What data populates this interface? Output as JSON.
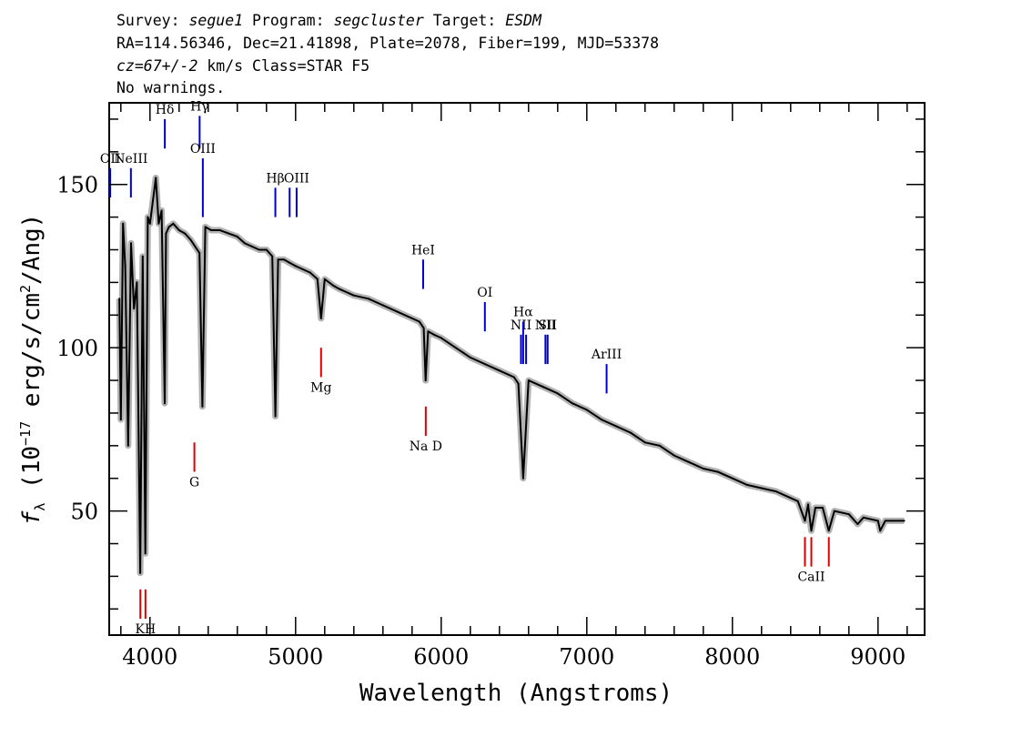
{
  "header": {
    "line1": {
      "survey_label": "Survey: ",
      "survey": "segue1",
      "program_label": " Program: ",
      "program": "segcluster",
      "target_label": " Target: ",
      "target": "ESDM"
    },
    "line2": "RA=114.56346, Dec=21.41898, Plate=2078, Fiber=199, MJD=53378",
    "line3": {
      "cz": "cz=67+/-2",
      "rest": " km/s Class=STAR F5"
    },
    "line4": "No warnings."
  },
  "colors": {
    "emission": "#0000cc",
    "absorption": "#dd0000",
    "spectrum": "#000000",
    "error_band": "#b3b3b3",
    "label_line": "#000000"
  },
  "chart_data": {
    "type": "line",
    "title": "",
    "xlabel": "Wavelength (Angstroms)",
    "ylabel_parts": [
      "f",
      "λ",
      " (10",
      "−17",
      " erg/s/cm",
      "2",
      "/Ang)"
    ],
    "xlim": [
      3720,
      9320
    ],
    "ylim": [
      12,
      175
    ],
    "xticks": [
      4000,
      5000,
      6000,
      7000,
      8000,
      9000
    ],
    "yticks": [
      50,
      100,
      150
    ],
    "grid": false,
    "series": [
      {
        "x": [
          3790,
          3800,
          3815,
          3830,
          3850,
          3870,
          3890,
          3910,
          3933,
          3950,
          3968,
          3985,
          4000,
          4020,
          4040,
          4060,
          4080,
          4101,
          4110,
          4130,
          4160,
          4200,
          4240,
          4280,
          4310,
          4340,
          4360,
          4380,
          4420,
          4480,
          4540,
          4600,
          4650,
          4700,
          4750,
          4800,
          4840,
          4861,
          4880,
          4920,
          4960,
          5000,
          5050,
          5100,
          5150,
          5175,
          5200,
          5260,
          5300,
          5400,
          5500,
          5600,
          5700,
          5800,
          5850,
          5880,
          5893,
          5910,
          5950,
          6000,
          6100,
          6200,
          6300,
          6400,
          6500,
          6530,
          6563,
          6600,
          6700,
          6800,
          6900,
          7000,
          7100,
          7200,
          7300,
          7400,
          7500,
          7600,
          7700,
          7800,
          7900,
          8000,
          8100,
          8200,
          8300,
          8400,
          8450,
          8498,
          8520,
          8542,
          8570,
          8620,
          8662,
          8700,
          8800,
          8860,
          8900,
          9000,
          9015,
          9050,
          9100,
          9180
        ],
        "y": [
          115,
          78,
          138,
          125,
          70,
          132,
          112,
          120,
          31,
          128,
          37,
          140,
          138,
          145,
          152,
          138,
          142,
          83,
          135,
          137,
          138,
          136,
          135,
          133,
          131,
          129,
          82,
          137,
          136,
          136,
          135,
          134,
          132,
          131,
          130,
          130,
          128,
          79,
          127,
          127,
          126,
          125,
          124,
          123,
          121,
          109,
          121,
          119,
          118,
          116,
          115,
          113,
          111,
          109,
          108,
          106,
          90,
          105,
          104,
          103,
          100,
          97,
          95,
          93,
          91,
          89,
          60,
          90,
          88,
          86,
          83,
          81,
          78,
          76,
          74,
          71,
          70,
          67,
          65,
          63,
          62,
          60,
          58,
          57,
          56,
          54,
          53,
          47,
          52,
          44,
          51,
          51,
          44,
          50,
          49,
          46,
          48,
          47,
          44,
          47,
          47,
          47
        ]
      }
    ],
    "emission_lines": [
      {
        "wave": 3727,
        "label": "OII",
        "y1": 146,
        "y2": 155
      },
      {
        "wave": 3869,
        "label": "NeIII",
        "y1": 146,
        "y2": 155
      },
      {
        "wave": 4102,
        "label": "Hδ",
        "y1": 161,
        "y2": 170
      },
      {
        "wave": 4341,
        "label": "Hγ",
        "y1": 161,
        "y2": 171
      },
      {
        "wave": 4363,
        "label": "OIII",
        "y1": 140,
        "y2": 158
      },
      {
        "wave": 4861,
        "label": "Hβ",
        "y1": 140,
        "y2": 149
      },
      {
        "wave": 4959,
        "label": "",
        "y1": 140,
        "y2": 149
      },
      {
        "wave": 5007,
        "label": "OIII",
        "y1": 140,
        "y2": 149
      },
      {
        "wave": 5876,
        "label": "HeI",
        "y1": 118,
        "y2": 127
      },
      {
        "wave": 6300,
        "label": "OI",
        "y1": 105,
        "y2": 114
      },
      {
        "wave": 6548,
        "label": "NII",
        "y1": 95,
        "y2": 104
      },
      {
        "wave": 6563,
        "label": "Hα",
        "y1": 95,
        "y2": 108
      },
      {
        "wave": 6583,
        "label": "",
        "y1": 95,
        "y2": 104
      },
      {
        "wave": 6716,
        "label": "NII",
        "y1": 95,
        "y2": 104
      },
      {
        "wave": 6731,
        "label": "SII",
        "y1": 95,
        "y2": 104
      },
      {
        "wave": 7136,
        "label": "ArIII",
        "y1": 86,
        "y2": 95
      }
    ],
    "absorption_lines": [
      {
        "wave": 3934,
        "label": "",
        "y1": 17,
        "y2": 26
      },
      {
        "wave": 3969,
        "label": "KH",
        "y1": 17,
        "y2": 26
      },
      {
        "wave": 4305,
        "label": "G",
        "y1": 62,
        "y2": 71
      },
      {
        "wave": 5175,
        "label": "Mg",
        "y1": 91,
        "y2": 100
      },
      {
        "wave": 5894,
        "label": "Na D",
        "y1": 73,
        "y2": 82
      },
      {
        "wave": 8498,
        "label": "",
        "y1": 33,
        "y2": 42
      },
      {
        "wave": 8542,
        "label": "CaII",
        "y1": 33,
        "y2": 42
      },
      {
        "wave": 8662,
        "label": "",
        "y1": 33,
        "y2": 42
      }
    ]
  }
}
